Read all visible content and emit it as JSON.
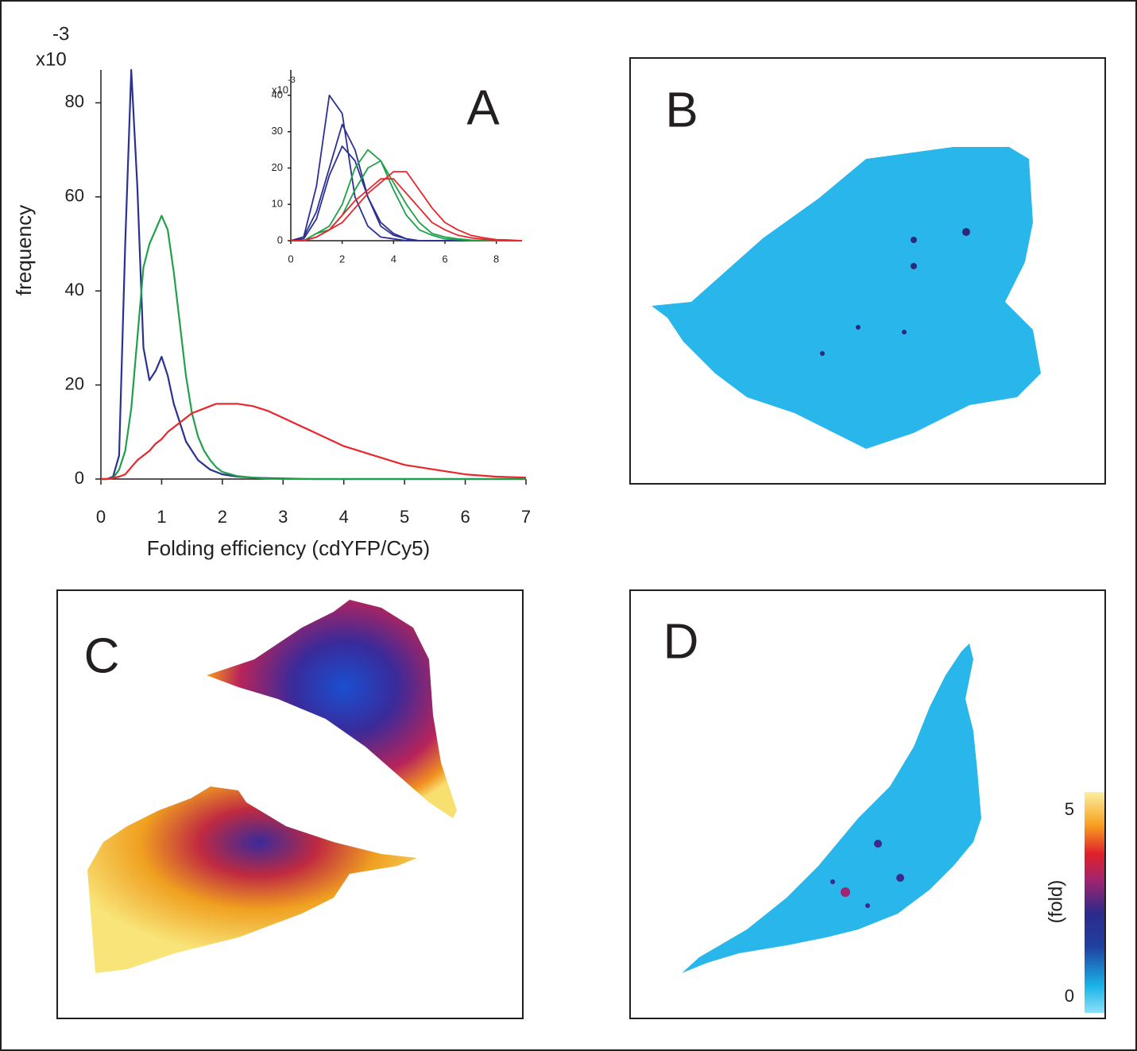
{
  "chart_data": [
    {
      "type": "line",
      "panel_label": "A",
      "y_label": "frequency",
      "x_label": "Folding efficiency (cdYFP/Cy5)",
      "y_scale_base": "x10",
      "y_scale_exponent": "-3",
      "x": [
        0,
        0.1,
        0.2,
        0.3,
        0.4,
        0.5,
        0.6,
        0.7,
        0.8,
        0.9,
        1,
        1.1,
        1.2,
        1.3,
        1.4,
        1.5,
        1.6,
        1.7,
        1.8,
        1.9,
        2,
        2.25,
        2.5,
        2.75,
        3,
        3.5,
        4,
        4.5,
        5,
        5.5,
        6,
        6.5,
        7
      ],
      "series": [
        {
          "color": "#2b3192",
          "values": [
            0,
            0,
            0.5,
            5,
            50,
            87,
            62,
            28,
            21,
            23,
            26,
            22,
            16,
            12,
            8,
            6,
            4,
            3,
            2,
            1.5,
            1,
            0.5,
            0.3,
            0.2,
            0.1,
            0,
            0,
            0,
            0,
            0,
            0,
            0,
            0
          ]
        },
        {
          "color": "#1fa04a",
          "values": [
            0,
            0,
            0.2,
            2,
            6,
            15,
            30,
            45,
            50,
            53,
            56,
            53,
            44,
            33,
            22,
            14,
            9,
            6,
            4,
            2.5,
            1.5,
            0.6,
            0.3,
            0.1,
            0,
            0,
            0,
            0,
            0,
            0,
            0,
            0,
            0
          ]
        },
        {
          "color": "#e8262c",
          "values": [
            0,
            0,
            0.2,
            0.5,
            1,
            2.5,
            4,
            5,
            6,
            7.5,
            8.5,
            10,
            11,
            12,
            13,
            14,
            14.5,
            15,
            15.5,
            16,
            16,
            16,
            15.5,
            14.5,
            13,
            10,
            7,
            5,
            3,
            2,
            1,
            0.5,
            0.3
          ]
        }
      ],
      "xlim": [
        0,
        7
      ],
      "ylim": [
        0,
        87
      ],
      "xticks": [
        0,
        1,
        2,
        3,
        4,
        5,
        6,
        7
      ],
      "yticks": [
        0,
        20,
        40,
        60,
        80
      ]
    },
    {
      "type": "line",
      "y_scale_base": "x10",
      "y_scale_exponent": "-3",
      "x": [
        0,
        0.5,
        1,
        1.5,
        2,
        2.5,
        3,
        3.5,
        4,
        4.5,
        5,
        5.5,
        6,
        6.5,
        7,
        7.5,
        8,
        8.5,
        9
      ],
      "series": [
        {
          "color": "#2b3192",
          "values": [
            0,
            1,
            15,
            40,
            35,
            12,
            4,
            1,
            0.5,
            0,
            0,
            0,
            0,
            0,
            0,
            0,
            0,
            0,
            0
          ]
        },
        {
          "color": "#2b3192",
          "values": [
            0,
            1,
            8,
            20,
            32,
            25,
            12,
            4,
            1.5,
            0.5,
            0,
            0,
            0,
            0,
            0,
            0,
            0,
            0,
            0
          ]
        },
        {
          "color": "#2b3192",
          "values": [
            0,
            0.5,
            6,
            18,
            26,
            22,
            12,
            5,
            2,
            0.5,
            0,
            0,
            0,
            0,
            0,
            0,
            0,
            0,
            0
          ]
        },
        {
          "color": "#1fa04a",
          "values": [
            0,
            0,
            2,
            4,
            10,
            20,
            25,
            22,
            14,
            7,
            3,
            1.5,
            0.5,
            0.3,
            0,
            0,
            0,
            0,
            0
          ]
        },
        {
          "color": "#1fa04a",
          "values": [
            0,
            0,
            2,
            3,
            7,
            14,
            20,
            22,
            16,
            10,
            5,
            2,
            1,
            0.5,
            0.2,
            0,
            0,
            0,
            0
          ]
        },
        {
          "color": "#e8262c",
          "values": [
            0,
            0,
            1,
            3,
            5,
            9,
            13,
            16,
            19,
            19,
            14,
            9,
            5,
            3,
            1.5,
            0.8,
            0.3,
            0.2,
            0
          ]
        },
        {
          "color": "#e8262c",
          "values": [
            0,
            0,
            1,
            3,
            7,
            11,
            14,
            17,
            17,
            13,
            9,
            5,
            3,
            1.5,
            0.8,
            0.4,
            0.2,
            0.1,
            0
          ]
        }
      ],
      "xlim": [
        0,
        9
      ],
      "ylim": [
        0,
        47
      ],
      "xticks": [
        0,
        2,
        4,
        6,
        8
      ],
      "yticks": [
        0,
        10,
        20,
        30,
        40
      ]
    }
  ],
  "panels": {
    "b": {
      "label": "B"
    },
    "c": {
      "label": "C"
    },
    "d": {
      "label": "D",
      "colorbar": {
        "label": "(fold)",
        "lim": [
          0,
          5
        ],
        "ticks": [
          0,
          5
        ]
      }
    }
  }
}
